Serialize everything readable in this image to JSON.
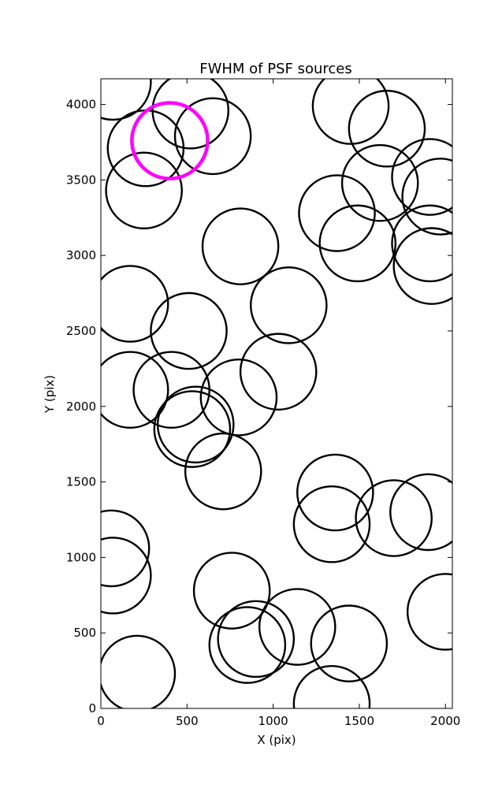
{
  "chart_data": {
    "type": "scatter",
    "marker": "circle",
    "title": "FWHM of PSF sources",
    "xlabel": "X (pix)",
    "ylabel": "Y (pix)",
    "xlim": [
      0,
      2040
    ],
    "ylim": [
      0,
      4170
    ],
    "xticks": [
      0,
      500,
      1000,
      1500,
      2000
    ],
    "yticks": [
      0,
      500,
      1000,
      1500,
      2000,
      2500,
      3000,
      3500,
      4000
    ],
    "grid": false,
    "circle_radius_data_units": 220,
    "series": [
      {
        "color": "#000000",
        "points": [
          {
            "x": 70,
            "y": 4150
          },
          {
            "x": 520,
            "y": 3960
          },
          {
            "x": 650,
            "y": 3790
          },
          {
            "x": 260,
            "y": 3710
          },
          {
            "x": 250,
            "y": 3430
          },
          {
            "x": 1450,
            "y": 3990
          },
          {
            "x": 1660,
            "y": 3840
          },
          {
            "x": 1620,
            "y": 3480
          },
          {
            "x": 1910,
            "y": 3520
          },
          {
            "x": 1970,
            "y": 3390
          },
          {
            "x": 1370,
            "y": 3280
          },
          {
            "x": 1490,
            "y": 3080
          },
          {
            "x": 1910,
            "y": 3080
          },
          {
            "x": 1920,
            "y": 2930
          },
          {
            "x": 810,
            "y": 3060
          },
          {
            "x": 170,
            "y": 2680
          },
          {
            "x": 510,
            "y": 2500
          },
          {
            "x": 1090,
            "y": 2670
          },
          {
            "x": 170,
            "y": 2110
          },
          {
            "x": 410,
            "y": 2110
          },
          {
            "x": 800,
            "y": 2060
          },
          {
            "x": 1030,
            "y": 2230
          },
          {
            "x": 550,
            "y": 1880
          },
          {
            "x": 530,
            "y": 1850
          },
          {
            "x": 710,
            "y": 1570
          },
          {
            "x": 1360,
            "y": 1430
          },
          {
            "x": 1340,
            "y": 1220
          },
          {
            "x": 1700,
            "y": 1260
          },
          {
            "x": 1900,
            "y": 1300
          },
          {
            "x": 60,
            "y": 1060
          },
          {
            "x": 70,
            "y": 880
          },
          {
            "x": 760,
            "y": 780
          },
          {
            "x": 1140,
            "y": 540
          },
          {
            "x": 1440,
            "y": 430
          },
          {
            "x": 900,
            "y": 460
          },
          {
            "x": 850,
            "y": 420
          },
          {
            "x": 2000,
            "y": 640
          },
          {
            "x": 210,
            "y": 230
          },
          {
            "x": 1340,
            "y": 30
          }
        ]
      },
      {
        "color": "#ff00ff",
        "points": [
          {
            "x": 400,
            "y": 3760
          }
        ]
      }
    ]
  }
}
